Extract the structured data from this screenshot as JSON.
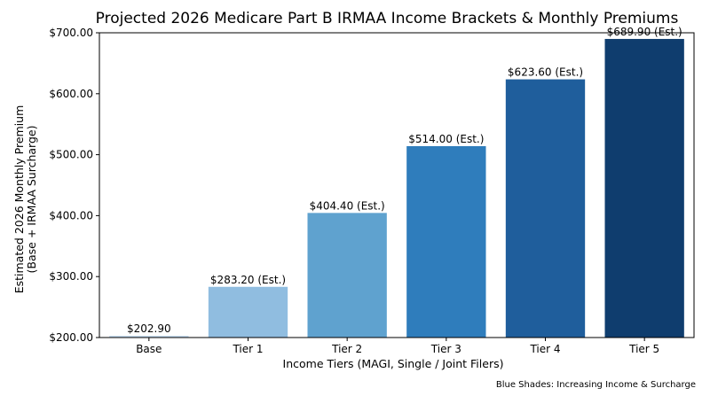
{
  "chart_data": {
    "type": "bar",
    "title": "Projected 2026 Medicare Part B IRMAA Income Brackets & Monthly Premiums",
    "xlabel": "Income Tiers (MAGI, Single / Joint Filers)",
    "ylabel_line1": "Estimated 2026 Monthly Premium",
    "ylabel_line2": "(Base + IRMAA Surcharge)",
    "categories": [
      "Base",
      "Tier 1",
      "Tier 2",
      "Tier 3",
      "Tier 4",
      "Tier 5"
    ],
    "values": [
      202.9,
      283.2,
      404.4,
      514.0,
      623.6,
      689.9
    ],
    "data_labels": [
      "$202.90",
      "$283.20 (Est.)",
      "$404.40 (Est.)",
      "$514.00 (Est.)",
      "$623.60 (Est.)",
      "$689.90 (Est.)"
    ],
    "colors": [
      "#c6dbef",
      "#90bde0",
      "#5fa2cf",
      "#2f7dbc",
      "#1f5e9c",
      "#0f3d6e"
    ],
    "ylim": [
      200,
      700
    ],
    "yticks": [
      200,
      300,
      400,
      500,
      600,
      700
    ],
    "ytick_labels": [
      "$200.00",
      "$300.00",
      "$400.00",
      "$500.00",
      "$600.00",
      "$700.00"
    ],
    "grid": false,
    "footnote": "Blue Shades: Increasing Income & Surcharge"
  }
}
